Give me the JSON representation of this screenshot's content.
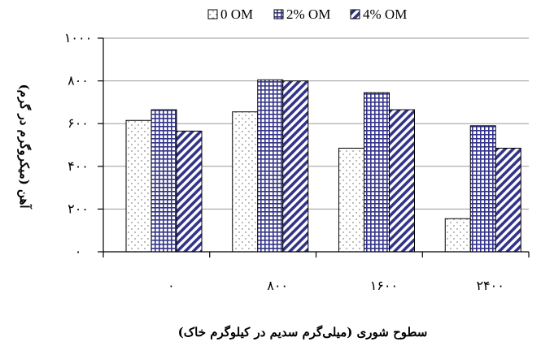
{
  "chart_data": {
    "type": "bar",
    "title": "",
    "xlabel": "سطوح شوری (میلی‌گرم سدیم در کیلوگرم خاک)",
    "ylabel": "آهن (میکروگرم در گرم)",
    "categories": [
      "۰",
      "۸۰۰",
      "۱۶۰۰",
      "۲۴۰۰"
    ],
    "ylim": [
      0,
      1000
    ],
    "yticks": [
      0,
      200,
      400,
      600,
      800,
      1000
    ],
    "ytick_labels": [
      "۰",
      "۲۰۰",
      "۴۰۰",
      "۶۰۰",
      "۸۰۰",
      "۱۰۰۰"
    ],
    "grid": "horizontal",
    "legend_position": "top",
    "series": [
      {
        "name": "0 OM",
        "pattern": "dots",
        "color": "#ffffff",
        "values": [
          615,
          655,
          485,
          155
        ]
      },
      {
        "name": "2% OM",
        "pattern": "grid",
        "color": "#33338a",
        "values": [
          665,
          805,
          745,
          590
        ]
      },
      {
        "name": "4% OM",
        "pattern": "diagonal",
        "color": "#333388",
        "values": [
          565,
          800,
          665,
          485
        ]
      }
    ]
  }
}
